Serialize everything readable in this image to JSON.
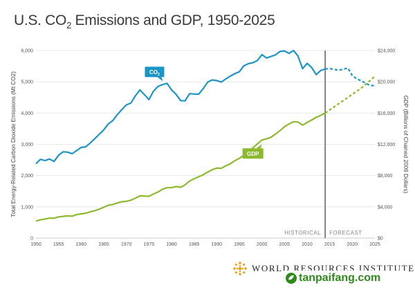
{
  "title_main": "U.S. CO",
  "title_sub": "2",
  "title_rest": " Emissions and GDP, 1950-2025",
  "logo": {
    "text": "WORLD RESOURCES INSTITUTE"
  },
  "watermark": {
    "text": "tanpaifang.com"
  },
  "colors": {
    "co2": "#1a95c6",
    "gdp": "#8cba2e",
    "grid": "#e3e3e3",
    "divider": "#777777"
  },
  "chart_data": {
    "type": "line",
    "title": "U.S. CO2 Emissions and GDP, 1950-2025",
    "xlabel": "",
    "ylabel": "Total Energy-Related Carbon Dioxide Emissions (Mt CO2)",
    "y2label": "GDP (Billions of Chained 2009 Dollars)",
    "xlim": [
      1950,
      2025
    ],
    "ylim": [
      0,
      6000
    ],
    "y2lim": [
      0,
      24000
    ],
    "x_ticks": [
      "1950",
      "1955",
      "1960",
      "1965",
      "1970",
      "1975",
      "1980",
      "1985",
      "1990",
      "1995",
      "2000",
      "2005",
      "2010",
      "2015",
      "2020",
      "2025"
    ],
    "y_ticks": [
      "0",
      "1,000",
      "2,000",
      "3,000",
      "4,000",
      "5,000",
      "6,000"
    ],
    "y2_ticks": [
      "$0",
      "$4,000",
      "$8,000",
      "$12,000",
      "$16,000",
      "$20,000",
      "$24,000"
    ],
    "grid": true,
    "divider_year": 2014,
    "phase_labels": [
      "HISTORICAL",
      "FORECAST"
    ],
    "series": [
      {
        "name": "CO2",
        "axis": "left",
        "historical": [
          [
            1950,
            2380
          ],
          [
            1951,
            2520
          ],
          [
            1952,
            2480
          ],
          [
            1953,
            2530
          ],
          [
            1954,
            2450
          ],
          [
            1955,
            2650
          ],
          [
            1956,
            2760
          ],
          [
            1957,
            2750
          ],
          [
            1958,
            2700
          ],
          [
            1959,
            2800
          ],
          [
            1960,
            2900
          ],
          [
            1961,
            2920
          ],
          [
            1962,
            3040
          ],
          [
            1963,
            3180
          ],
          [
            1964,
            3320
          ],
          [
            1965,
            3460
          ],
          [
            1966,
            3650
          ],
          [
            1967,
            3760
          ],
          [
            1968,
            3950
          ],
          [
            1969,
            4110
          ],
          [
            1970,
            4260
          ],
          [
            1971,
            4320
          ],
          [
            1972,
            4550
          ],
          [
            1973,
            4740
          ],
          [
            1974,
            4590
          ],
          [
            1975,
            4430
          ],
          [
            1976,
            4700
          ],
          [
            1977,
            4850
          ],
          [
            1978,
            4910
          ],
          [
            1979,
            4950
          ],
          [
            1980,
            4740
          ],
          [
            1981,
            4600
          ],
          [
            1982,
            4400
          ],
          [
            1983,
            4390
          ],
          [
            1984,
            4620
          ],
          [
            1985,
            4610
          ],
          [
            1986,
            4600
          ],
          [
            1987,
            4780
          ],
          [
            1988,
            4990
          ],
          [
            1989,
            5060
          ],
          [
            1990,
            5040
          ],
          [
            1991,
            4990
          ],
          [
            1992,
            5090
          ],
          [
            1993,
            5180
          ],
          [
            1994,
            5260
          ],
          [
            1995,
            5320
          ],
          [
            1996,
            5510
          ],
          [
            1997,
            5580
          ],
          [
            1998,
            5610
          ],
          [
            1999,
            5680
          ],
          [
            2000,
            5870
          ],
          [
            2001,
            5760
          ],
          [
            2002,
            5810
          ],
          [
            2003,
            5860
          ],
          [
            2004,
            5970
          ],
          [
            2005,
            5990
          ],
          [
            2006,
            5910
          ],
          [
            2007,
            6000
          ],
          [
            2008,
            5820
          ],
          [
            2009,
            5420
          ],
          [
            2010,
            5590
          ],
          [
            2011,
            5460
          ],
          [
            2012,
            5230
          ],
          [
            2013,
            5360
          ],
          [
            2014,
            5410
          ]
        ],
        "forecast": [
          [
            2014,
            5410
          ],
          [
            2015,
            5420
          ],
          [
            2016,
            5400
          ],
          [
            2017,
            5370
          ],
          [
            2018,
            5400
          ],
          [
            2019,
            5440
          ],
          [
            2020,
            5200
          ],
          [
            2021,
            5090
          ],
          [
            2022,
            5030
          ],
          [
            2023,
            4950
          ],
          [
            2024,
            4880
          ],
          [
            2025,
            4880
          ]
        ]
      },
      {
        "name": "GDP",
        "axis": "right",
        "historical": [
          [
            1950,
            2180
          ],
          [
            1951,
            2340
          ],
          [
            1952,
            2440
          ],
          [
            1953,
            2560
          ],
          [
            1954,
            2540
          ],
          [
            1955,
            2720
          ],
          [
            1956,
            2780
          ],
          [
            1957,
            2840
          ],
          [
            1958,
            2810
          ],
          [
            1959,
            3000
          ],
          [
            1960,
            3100
          ],
          [
            1961,
            3180
          ],
          [
            1962,
            3360
          ],
          [
            1963,
            3500
          ],
          [
            1964,
            3700
          ],
          [
            1965,
            3950
          ],
          [
            1966,
            4200
          ],
          [
            1967,
            4300
          ],
          [
            1968,
            4500
          ],
          [
            1969,
            4650
          ],
          [
            1970,
            4700
          ],
          [
            1971,
            4850
          ],
          [
            1972,
            5100
          ],
          [
            1973,
            5400
          ],
          [
            1974,
            5380
          ],
          [
            1975,
            5350
          ],
          [
            1976,
            5650
          ],
          [
            1977,
            5900
          ],
          [
            1978,
            6250
          ],
          [
            1979,
            6450
          ],
          [
            1980,
            6450
          ],
          [
            1981,
            6600
          ],
          [
            1982,
            6500
          ],
          [
            1983,
            6800
          ],
          [
            1984,
            7300
          ],
          [
            1985,
            7600
          ],
          [
            1986,
            7850
          ],
          [
            1987,
            8100
          ],
          [
            1988,
            8450
          ],
          [
            1989,
            8750
          ],
          [
            1990,
            8950
          ],
          [
            1991,
            8930
          ],
          [
            1992,
            9250
          ],
          [
            1993,
            9500
          ],
          [
            1994,
            9900
          ],
          [
            1995,
            10200
          ],
          [
            1996,
            10600
          ],
          [
            1997,
            11000
          ],
          [
            1998,
            11550
          ],
          [
            1999,
            12050
          ],
          [
            2000,
            12550
          ],
          [
            2001,
            12700
          ],
          [
            2002,
            12900
          ],
          [
            2003,
            13300
          ],
          [
            2004,
            13750
          ],
          [
            2005,
            14250
          ],
          [
            2006,
            14600
          ],
          [
            2007,
            14900
          ],
          [
            2008,
            14850
          ],
          [
            2009,
            14450
          ],
          [
            2010,
            14800
          ],
          [
            2011,
            15100
          ],
          [
            2012,
            15450
          ],
          [
            2013,
            15700
          ],
          [
            2014,
            16000
          ]
        ],
        "forecast": [
          [
            2014,
            16000
          ],
          [
            2015,
            16400
          ],
          [
            2016,
            16800
          ],
          [
            2017,
            17200
          ],
          [
            2018,
            17600
          ],
          [
            2019,
            18000
          ],
          [
            2020,
            18400
          ],
          [
            2021,
            18800
          ],
          [
            2022,
            19200
          ],
          [
            2023,
            19700
          ],
          [
            2024,
            20200
          ],
          [
            2025,
            20700
          ]
        ]
      }
    ],
    "annotations": [
      {
        "series": "CO2",
        "text": "CO",
        "sub": "2",
        "year": 1979
      },
      {
        "series": "GDP",
        "text": "GDP",
        "year": 2000
      }
    ]
  }
}
